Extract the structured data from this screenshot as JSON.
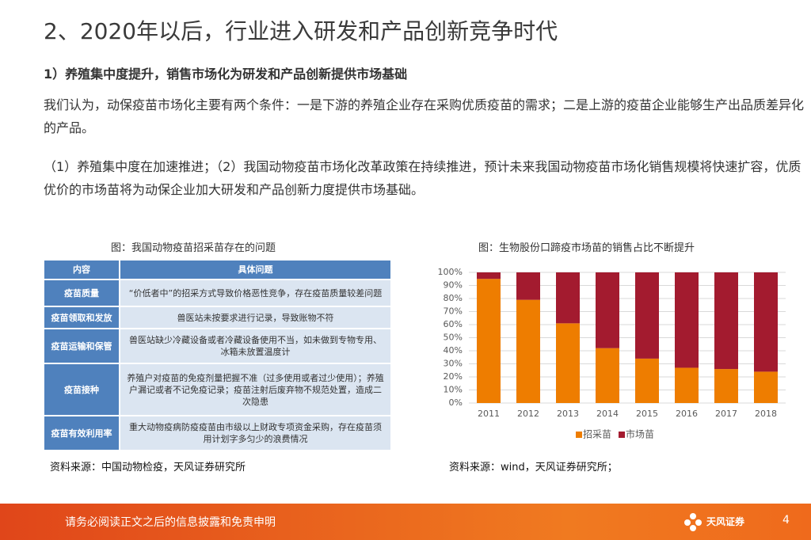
{
  "title": "2、2020年以后，行业进入研发和产品创新竞争时代",
  "subtitle": "1）养殖集中度提升，销售市场化为研发和产品创新提供市场基础",
  "paragraphs": [
    "我们认为，动保疫苗市场化主要有两个条件：一是下游的养殖企业存在采购优质疫苗的需求；二是上游的疫苗企业能够生产出品质差异化的产品。",
    "（1）养殖集中度在加速推进；（2）我国动物疫苗市场化改革政策在持续推进，预计未来我国动物疫苗市场化销售规模将快速扩容，优质优价的市场苗将为动保企业加大研发和产品创新力度提供市场基础。"
  ],
  "table": {
    "caption": "图：我国动物疫苗招采苗存在的问题",
    "header": [
      "内容",
      "具体问题"
    ],
    "rows": [
      [
        "疫苗质量",
        "“价低者中”的招采方式导致价格恶性竞争，存在疫苗质量较差问题"
      ],
      [
        "疫苗领取和发放",
        "兽医站未按要求进行记录，导致账物不符"
      ],
      [
        "疫苗运输和保管",
        "兽医站缺少冷藏设备或者冷藏设备使用不当，如未做到专物专用、冰箱未放置温度计"
      ],
      [
        "疫苗接种",
        "养殖户对疫苗的免疫剂量把握不准（过多使用或者过少使用）；养殖户漏记或者不记免疫记录；疫苗注射后废弃物不规范处置，造成二次隐患"
      ],
      [
        "疫苗有效利用率",
        "重大动物疫病防疫疫苗由市级以上财政专项资金采购，存在疫苗须用计划字多匀少的浪费情况"
      ]
    ],
    "source": "资料来源：中国动物检疫，天风证券研究所"
  },
  "chart_data": {
    "type": "bar",
    "stacked": true,
    "title": "图：生物股份口蹄疫市场苗的销售占比不断提升",
    "categories": [
      "2011",
      "2012",
      "2013",
      "2014",
      "2015",
      "2016",
      "2017",
      "2018"
    ],
    "series": [
      {
        "name": "招采苗",
        "color": "#ee7d00",
        "values": [
          95,
          79,
          61,
          42,
          34,
          27,
          26,
          24
        ]
      },
      {
        "name": "市场苗",
        "color": "#a31b2f",
        "values": [
          5,
          21,
          39,
          58,
          66,
          73,
          74,
          76
        ]
      }
    ],
    "ylim": [
      0,
      100
    ],
    "yticks": [
      {
        "value": 0,
        "label": "0%"
      },
      {
        "value": 10,
        "label": "10%"
      },
      {
        "value": 20,
        "label": "20%"
      },
      {
        "value": 30,
        "label": "30%"
      },
      {
        "value": 40,
        "label": "40%"
      },
      {
        "value": 50,
        "label": "50%"
      },
      {
        "value": 60,
        "label": "60%"
      },
      {
        "value": 70,
        "label": "70%"
      },
      {
        "value": 80,
        "label": "80%"
      },
      {
        "value": 90,
        "label": "90%"
      },
      {
        "value": 100,
        "label": "100%"
      }
    ],
    "grid": true,
    "legend": "bottom",
    "source": "资料来源：wind，天风证券研究所；"
  },
  "footer": {
    "disclaimer": "请务必阅读正文之后的信息披露和免责申明",
    "logo": "天风证券",
    "page": 4
  }
}
